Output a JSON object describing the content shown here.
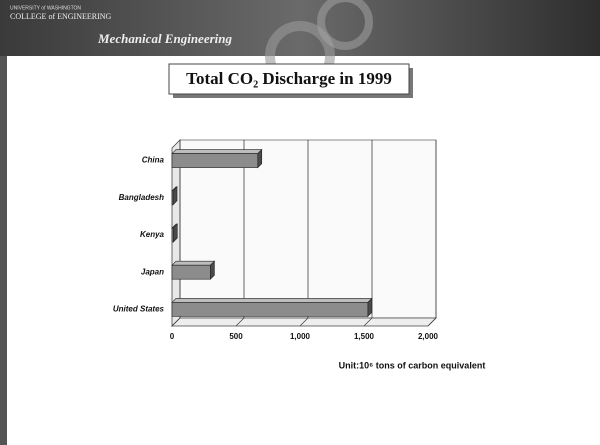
{
  "header": {
    "university": "UNIVERSITY of WASHINGTON",
    "college": "COLLEGE of ENGINEERING",
    "department": "Mechanical Engineering"
  },
  "chart_data": {
    "type": "bar",
    "orientation": "horizontal",
    "title": "Total CO₂ Discharge in 1999",
    "x_label": "Unit:10⁶ tons of carbon equivalent",
    "categories": [
      "China",
      "Bangladesh",
      "Kenya",
      "Japan",
      "United States"
    ],
    "values": [
      670,
      8,
      10,
      300,
      1530
    ],
    "color": "#8c8c8c",
    "xlim": [
      0,
      2000
    ],
    "xticks": [
      0,
      500,
      {
        "value": 1000,
        "label": "1,000"
      },
      {
        "value": 1500,
        "label": "1,500"
      },
      {
        "value": 2000,
        "label": "2,000"
      }
    ],
    "grid": true
  }
}
